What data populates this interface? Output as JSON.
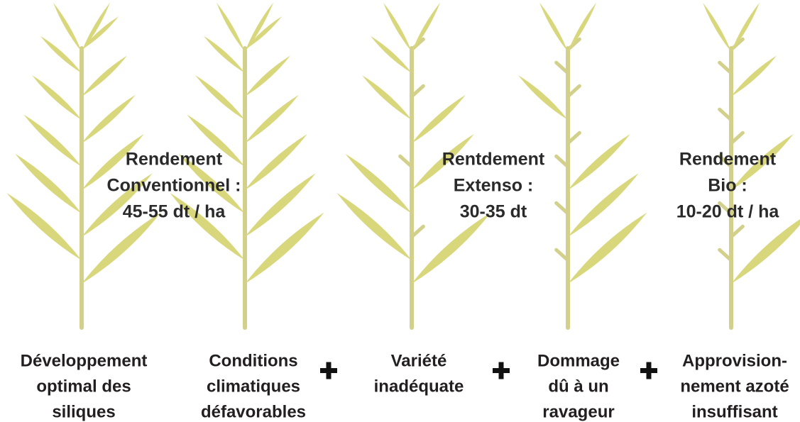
{
  "yields": [
    {
      "lines": [
        "Rendement",
        "Conventionnel :",
        "45-55 dt / ha"
      ]
    },
    {
      "lines": [
        "Rentdement",
        "Extenso :",
        "30-35 dt"
      ]
    },
    {
      "lines": [
        "Rendement",
        "Bio :",
        "10-20 dt / ha"
      ]
    }
  ],
  "factors": [
    {
      "lines": [
        "Développement",
        "optimal des",
        "siliques"
      ]
    },
    {
      "lines": [
        "Conditions",
        "climatiques",
        "défavorables"
      ]
    },
    {
      "lines": [
        "Variété",
        "inadéquate"
      ]
    },
    {
      "lines": [
        "Dommage",
        "dû à un",
        "ravageur"
      ]
    },
    {
      "lines": [
        "Approvision-",
        "nement azoté",
        "insuffisant"
      ]
    }
  ]
}
